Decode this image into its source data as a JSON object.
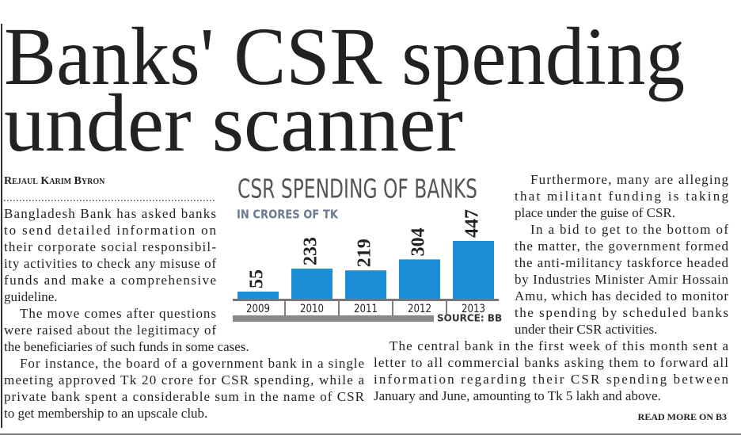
{
  "header": {
    "headline": [
      "Banks' CSR spending",
      "under scanner"
    ],
    "byline": "Rejaul Karim Byron"
  },
  "left_column": {
    "paragraphs": [
      [
        "Bangladesh Bank has asked banks",
        "to send detailed information on",
        "their corporate social responsibil-",
        "ity activities to check any misuse of",
        "funds and make a comprehensive",
        "guideline."
      ],
      [
        "The move comes after questions",
        "were raised about the legitimacy of",
        "the beneficiaries of such funds in some cases."
      ],
      [
        "For instance, the board of a government bank in a single",
        "meeting approved Tk 20 crore for CSR spending, while a",
        "private bank spent a considerable sum in the name of CSR",
        "to get membership to an upscale club."
      ]
    ]
  },
  "right_column": {
    "paragraphs": [
      [
        "Furthermore, many are alleging",
        "that militant funding is taking",
        "place under the guise of CSR."
      ],
      [
        "In a bid to get to the bottom of",
        "the matter, the government formed",
        "the anti-militancy taskforce headed",
        "by Industries Minister Amir Hossain",
        "Amu, which has decided to monitor",
        "the spending by scheduled banks",
        "under their CSR activities."
      ],
      [
        "The central bank in the first week of this month sent a",
        "letter to all commercial banks asking them to forward all",
        "information regarding their CSR spending between",
        "January and June, amounting to Tk 5 lakh and above."
      ]
    ]
  },
  "read_more": "READ MORE ON B3",
  "chart_data": {
    "type": "bar",
    "title": "CSR SPENDING OF BANKS",
    "subtitle": "IN CRORES OF TK",
    "categories": [
      "2009",
      "2010",
      "2011",
      "2012",
      "2013"
    ],
    "values": [
      55,
      233,
      219,
      304,
      447
    ],
    "color": "#1a8fd8",
    "source": "SOURCE: BB"
  }
}
